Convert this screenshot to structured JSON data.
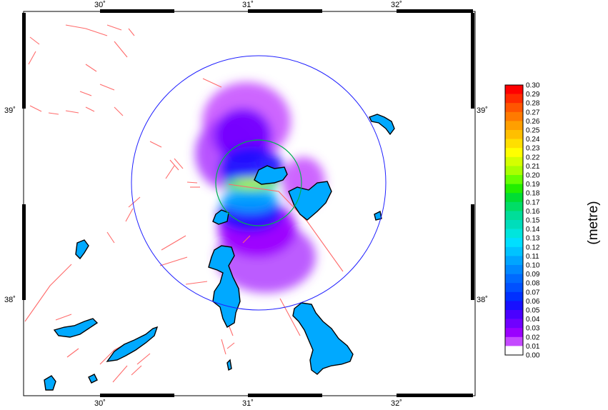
{
  "map": {
    "lon_ticks": [
      "30˚",
      "31˚",
      "32˚"
    ],
    "lat_ticks": [
      "39˚",
      "38˚"
    ],
    "colors": {
      "land": "#00a9ff",
      "coast": "#000000",
      "faults": "#ff6b6b",
      "outer_circle": "#2020ff",
      "inner_circle": "#00b050"
    }
  },
  "colorbar": {
    "unit_label": "(metre)",
    "levels": [
      "0.30",
      "0.29",
      "0.28",
      "0.27",
      "0.26",
      "0.25",
      "0.24",
      "0.23",
      "0.22",
      "0.21",
      "0.20",
      "0.19",
      "0.18",
      "0.17",
      "0.16",
      "0.15",
      "0.14",
      "0.13",
      "0.12",
      "0.11",
      "0.10",
      "0.09",
      "0.08",
      "0.07",
      "0.06",
      "0.05",
      "0.04",
      "0.03",
      "0.02",
      "0.01",
      "0.00"
    ],
    "colors": [
      "#ff0000",
      "#ff2a00",
      "#ff5500",
      "#ff7a00",
      "#ff9f00",
      "#ffbf00",
      "#ffdf00",
      "#ffff00",
      "#d4ff00",
      "#a8ff00",
      "#66ff00",
      "#22ee00",
      "#00dd33",
      "#00dd66",
      "#00dd99",
      "#00ddbb",
      "#00e5dd",
      "#00dfff",
      "#00c3ff",
      "#00a5ff",
      "#0088ff",
      "#006aff",
      "#0050ff",
      "#0030ff",
      "#1810ff",
      "#4a00ff",
      "#7000ff",
      "#9a00ff",
      "#c44aff",
      "#ffffff"
    ]
  }
}
